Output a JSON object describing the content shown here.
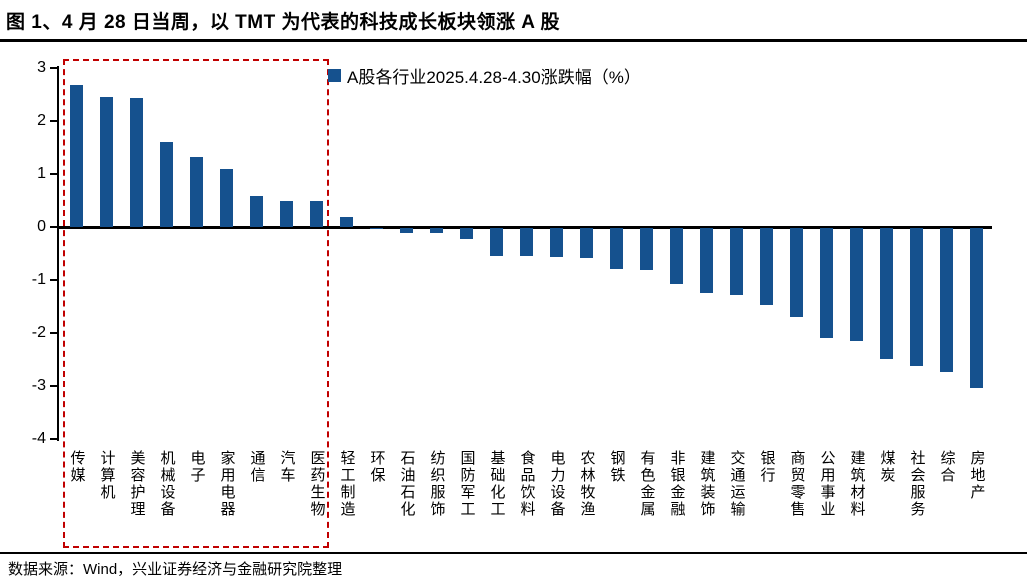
{
  "title": "图 1、4 月 28 日当周，以 TMT 为代表的科技成长板块领涨 A 股",
  "source": "数据来源：Wind，兴业证券经济与金融研究院整理",
  "colors": {
    "bar": "#15518E",
    "highlight_box": "#C00000",
    "axis": "#000000",
    "background": "#FFFFFF"
  },
  "chart_data": {
    "type": "bar",
    "title": "A股各行业2025.4.28-4.30涨跌幅（%）",
    "legend_label": "A股各行业2025.4.28-4.30涨跌幅（%）",
    "legend_position": "top",
    "grid": false,
    "xlabel": "",
    "ylabel": "",
    "ylim": [
      -4,
      3
    ],
    "yticks": [
      3,
      2,
      1,
      0,
      -1,
      -2,
      -3,
      -4
    ],
    "categories": [
      "传媒",
      "计算机",
      "美容护理",
      "机械设备",
      "电子",
      "家用电器",
      "通信",
      "汽车",
      "医药生物",
      "轻工制造",
      "环保",
      "石油石化",
      "纺织服饰",
      "国防军工",
      "基础化工",
      "食品饮料",
      "电力设备",
      "农林牧渔",
      "钢铁",
      "有色金属",
      "非银金融",
      "建筑装饰",
      "交通运输",
      "银行",
      "商贸零售",
      "公用事业",
      "建筑材料",
      "煤炭",
      "社会服务",
      "综合",
      "房地产"
    ],
    "values": [
      2.68,
      2.45,
      2.44,
      1.61,
      1.33,
      1.09,
      0.58,
      0.5,
      0.5,
      0.18,
      -0.02,
      -0.09,
      -0.1,
      -0.2,
      -0.52,
      -0.53,
      -0.55,
      -0.56,
      -0.77,
      -0.8,
      -1.05,
      -1.23,
      -1.26,
      -1.46,
      -1.68,
      -2.07,
      -2.13,
      -2.48,
      -2.6,
      -2.72,
      -3.01
    ],
    "highlight_box": {
      "from_category": "传媒",
      "to_category": "医药生物"
    }
  }
}
